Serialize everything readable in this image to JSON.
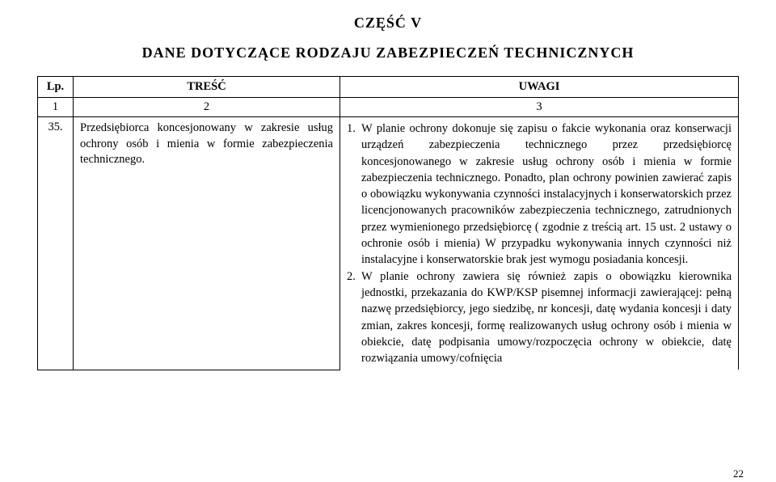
{
  "heading": {
    "part": "CZĘŚĆ V",
    "title": "DANE DOTYCZĄCE RODZAJU ZABEZPIECZEŃ TECHNICZNYCH"
  },
  "columns": {
    "lp": "Lp.",
    "tresc": "TREŚĆ",
    "uwagi": "UWAGI"
  },
  "numrow": {
    "c1": "1",
    "c2": "2",
    "c3": "3"
  },
  "row": {
    "lp": "35.",
    "tresc": "Przedsiębiorca koncesjonowany w zakresie usług ochrony osób i mienia w formie zabezpieczenia technicznego.",
    "uw1_num": "1.",
    "uw1_text": "W planie ochrony dokonuje się zapisu o fakcie wykonania oraz konserwacji urządzeń zabezpieczenia technicznego przez przedsiębiorcę koncesjonowanego w zakresie usług ochrony osób i mienia w formie zabezpieczenia technicznego. Ponadto, plan ochrony powinien zawierać zapis o obowiązku wykonywania czynności instalacyjnych i konserwatorskich przez licencjonowanych pracowników zabezpieczenia technicznego, zatrudnionych przez wymienionego przedsiębiorcę ( zgodnie z treścią art. 15 ust. 2 ustawy o ochronie osób i mienia) W przypadku wykonywania innych czynności niż instalacyjne i konserwatorskie brak jest wymogu posiadania koncesji.",
    "uw2_num": "2.",
    "uw2_text": "W planie ochrony zawiera się również zapis o obowiązku kierownika jednostki, przekazania do KWP/KSP pisemnej informacji zawierającej: pełną nazwę przedsiębiorcy, jego siedzibę, nr koncesji, datę wydania koncesji i daty zmian, zakres koncesji, formę realizowanych usług ochrony osób i mienia w obiekcie, datę podpisania umowy/rozpoczęcia ochrony w obiekcie, datę rozwiązania umowy/cofnięcia"
  },
  "page": "22"
}
